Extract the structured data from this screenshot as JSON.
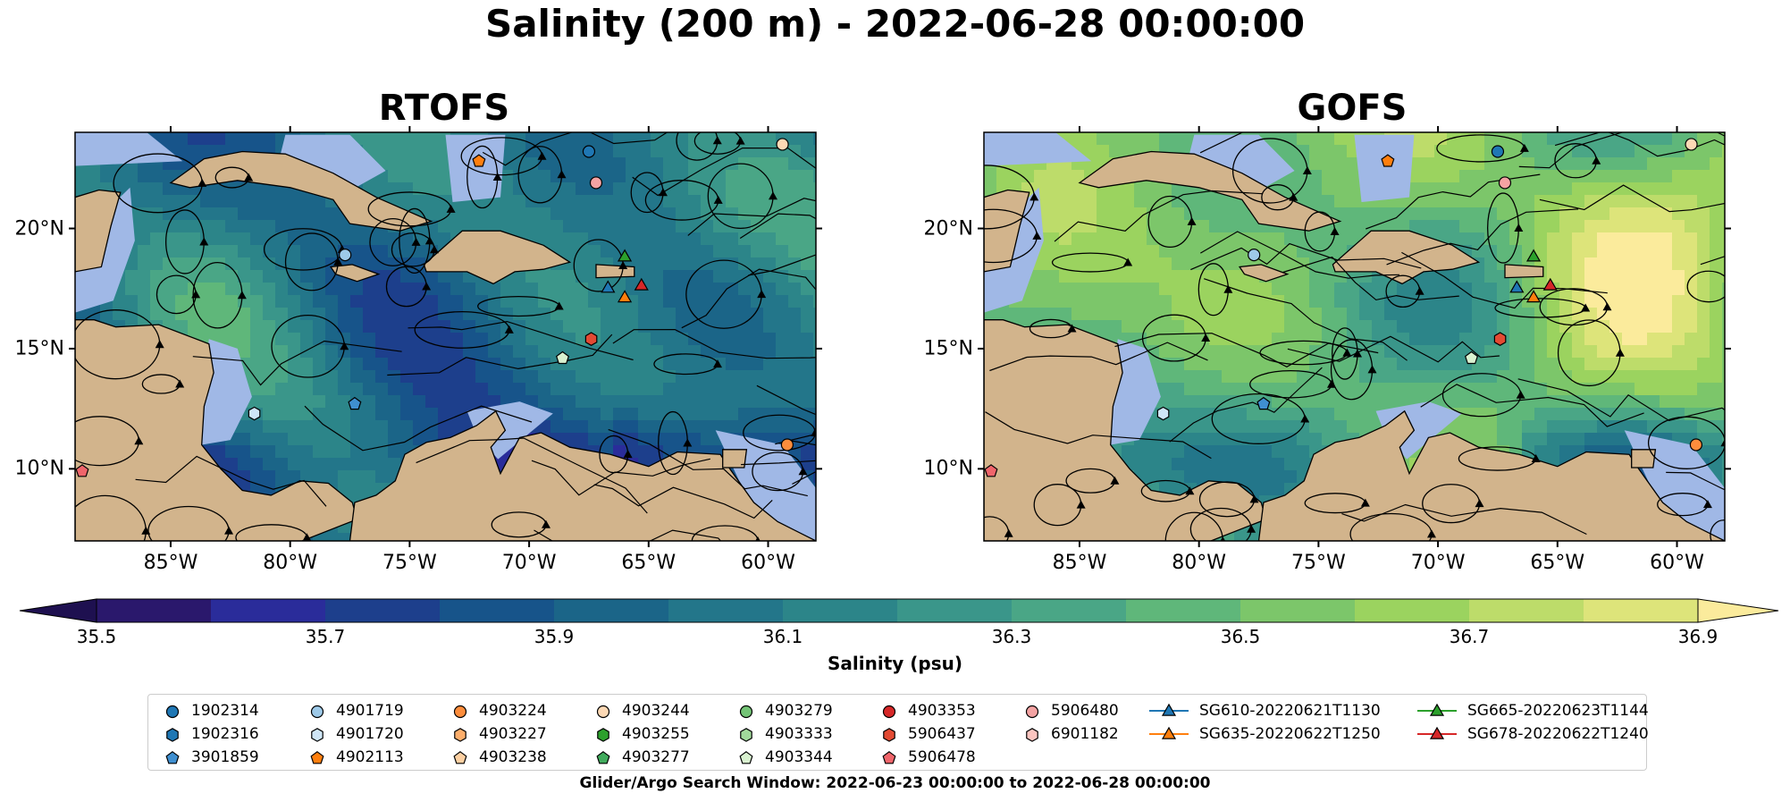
{
  "title": "Salinity (200 m) - 2022-06-28 00:00:00",
  "panels": [
    {
      "title": "RTOFS",
      "theme": "rtofs"
    },
    {
      "title": "GOFS",
      "theme": "gofs"
    }
  ],
  "map": {
    "lon_range": [
      -89,
      -58
    ],
    "lat_range": [
      7,
      24
    ],
    "x_ticks": [
      "85°W",
      "80°W",
      "75°W",
      "70°W",
      "65°W",
      "60°W"
    ],
    "y_ticks": [
      "20°N",
      "15°N",
      "10°N"
    ],
    "land_color": "#d2b48c",
    "shelf_color": "#a0b8e6"
  },
  "colorbar": {
    "label": "Salinity (psu)",
    "ticks": [
      "35.5",
      "35.7",
      "35.9",
      "36.1",
      "36.3",
      "36.5",
      "36.7",
      "36.9"
    ],
    "vmin": 35.5,
    "vmax": 36.9,
    "colors": [
      "#2a186c",
      "#2a2c9a",
      "#1d3f8c",
      "#17548a",
      "#1b6588",
      "#23768a",
      "#2c8589",
      "#3a968a",
      "#4aa686",
      "#5fb77a",
      "#7cc66a",
      "#9bd35f",
      "#bddc6a",
      "#dde47a"
    ],
    "under_color": "#1e1050",
    "over_color": "#fbeb9c"
  },
  "legend": {
    "entries": [
      {
        "label": "1902314",
        "marker": "circle",
        "color": "#1f77b4"
      },
      {
        "label": "1902316",
        "marker": "hexagon",
        "color": "#1f77b4"
      },
      {
        "label": "3901859",
        "marker": "pentagon",
        "color": "#3f8fd0"
      },
      {
        "label": "4901719",
        "marker": "circle",
        "color": "#9ecae9"
      },
      {
        "label": "4901720",
        "marker": "hexagon",
        "color": "#cfe6f7"
      },
      {
        "label": "4902113",
        "marker": "pentagon",
        "color": "#ff7f0e"
      },
      {
        "label": "4903224",
        "marker": "circle",
        "color": "#fd8d3c"
      },
      {
        "label": "4903227",
        "marker": "hexagon",
        "color": "#fdae6b"
      },
      {
        "label": "4903238",
        "marker": "pentagon",
        "color": "#fdd0a2"
      },
      {
        "label": "4903244",
        "marker": "circle",
        "color": "#fdd9b5"
      },
      {
        "label": "4903255",
        "marker": "hexagon",
        "color": "#2ca02c"
      },
      {
        "label": "4903277",
        "marker": "pentagon",
        "color": "#41ab5d"
      },
      {
        "label": "4903279",
        "marker": "circle",
        "color": "#74c476"
      },
      {
        "label": "4903333",
        "marker": "hexagon",
        "color": "#a1d99b"
      },
      {
        "label": "4903344",
        "marker": "pentagon",
        "color": "#d9f2d0"
      },
      {
        "label": "4903353",
        "marker": "circle",
        "color": "#d62728"
      },
      {
        "label": "5906437",
        "marker": "hexagon",
        "color": "#e34a33"
      },
      {
        "label": "5906478",
        "marker": "pentagon",
        "color": "#f0656b"
      },
      {
        "label": "5906480",
        "marker": "circle",
        "color": "#f4a3a3"
      },
      {
        "label": "6901182",
        "marker": "hexagon",
        "color": "#fcc5c0"
      },
      {
        "label": "SG610-20220621T1130",
        "marker": "triangle-line",
        "color": "#1f77b4"
      },
      {
        "label": "SG635-20220622T1250",
        "marker": "triangle-line",
        "color": "#ff7f0e"
      },
      {
        "label": "SG665-20220623T1144",
        "marker": "triangle-line",
        "color": "#2ca02c"
      },
      {
        "label": "SG678-20220622T1240",
        "marker": "triangle-line",
        "color": "#d62728"
      }
    ]
  },
  "map_markers": [
    {
      "lon": -67.5,
      "lat": 23.2,
      "marker": "circle",
      "color": "#1f77b4"
    },
    {
      "lon": -72.1,
      "lat": 22.8,
      "marker": "pentagon",
      "color": "#ff7f0e"
    },
    {
      "lon": -67.2,
      "lat": 21.9,
      "marker": "circle",
      "color": "#f4a3a3"
    },
    {
      "lon": -59.4,
      "lat": 23.5,
      "marker": "circle",
      "color": "#fdd9b5"
    },
    {
      "lon": -66.0,
      "lat": 18.8,
      "marker": "triangle",
      "color": "#2ca02c"
    },
    {
      "lon": -66.7,
      "lat": 17.5,
      "marker": "triangle",
      "color": "#1f77b4"
    },
    {
      "lon": -66.0,
      "lat": 17.1,
      "marker": "triangle",
      "color": "#ff7f0e"
    },
    {
      "lon": -65.3,
      "lat": 17.6,
      "marker": "triangle",
      "color": "#d62728"
    },
    {
      "lon": -67.4,
      "lat": 15.4,
      "marker": "hexagon",
      "color": "#e34a33"
    },
    {
      "lon": -68.6,
      "lat": 14.6,
      "marker": "pentagon",
      "color": "#d9f2d0"
    },
    {
      "lon": -77.7,
      "lat": 18.9,
      "marker": "circle",
      "color": "#9ecae9"
    },
    {
      "lon": -81.5,
      "lat": 12.3,
      "marker": "hexagon",
      "color": "#cfe6f7"
    },
    {
      "lon": -77.3,
      "lat": 12.7,
      "marker": "pentagon",
      "color": "#3f8fd0"
    },
    {
      "lon": -88.7,
      "lat": 9.9,
      "marker": "pentagon",
      "color": "#f0656b"
    },
    {
      "lon": -59.2,
      "lat": 11.0,
      "marker": "circle",
      "color": "#fd8d3c"
    }
  ],
  "footer": {
    "search_window": "Glider/Argo Search Window: 2022-06-23 00:00:00 to 2022-06-28 00:00:00"
  }
}
